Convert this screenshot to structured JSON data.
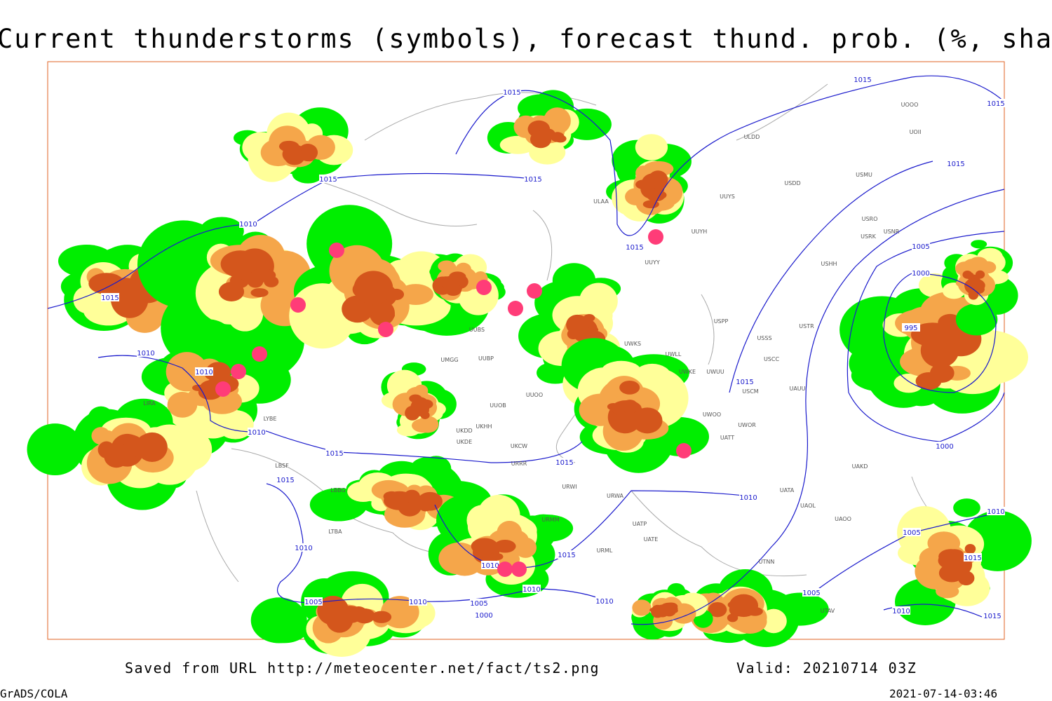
{
  "header": {
    "title": "Current thunderstorms (symbols), forecast thund. prob. (%, shaded)"
  },
  "footer": {
    "source": "Saved from URL http://meteocenter.net/fact/ts2.png",
    "valid": "Valid: 20210714 03Z",
    "software": "GrADS/COLA",
    "timestamp": "2021-07-14-03:46"
  },
  "isobar_labels": [
    1015,
    1015,
    1015,
    1015,
    1015,
    1015,
    1010,
    1015,
    1005,
    1000,
    995,
    1015,
    1010,
    1010,
    1015,
    1010,
    1015,
    1015,
    1015,
    1000,
    1010,
    1010,
    1015,
    1010,
    1010,
    1005,
    1015,
    1005,
    1010,
    1005,
    1000,
    1010,
    1005,
    1015,
    1010,
    1010
  ],
  "stations": [
    "ULAA",
    "UUYS",
    "UUYH",
    "UUYY",
    "ULDD",
    "USDD",
    "USMU",
    "USRO",
    "USRK",
    "USHH",
    "USNR",
    "UOOO",
    "UOII",
    "UUOO",
    "UUOB",
    "UUBP",
    "UUBS",
    "UMGG",
    "UKHH",
    "UKDD",
    "UKCW",
    "UKDE",
    "URRR",
    "URWI",
    "URWA",
    "UATT",
    "UWOR",
    "UWOO",
    "USCM",
    "UAUU",
    "USCC",
    "USSS",
    "USTR",
    "USPP",
    "UWKS",
    "UWLL",
    "UWKE",
    "UWUU",
    "UATA",
    "UAOL",
    "UAOO",
    "UAKD",
    "UATE",
    "UATP",
    "UTNN",
    "UTAV",
    "LIRA",
    "LYBE",
    "LBSF",
    "LBBG",
    "LTBA",
    "URMM",
    "URML"
  ]
}
